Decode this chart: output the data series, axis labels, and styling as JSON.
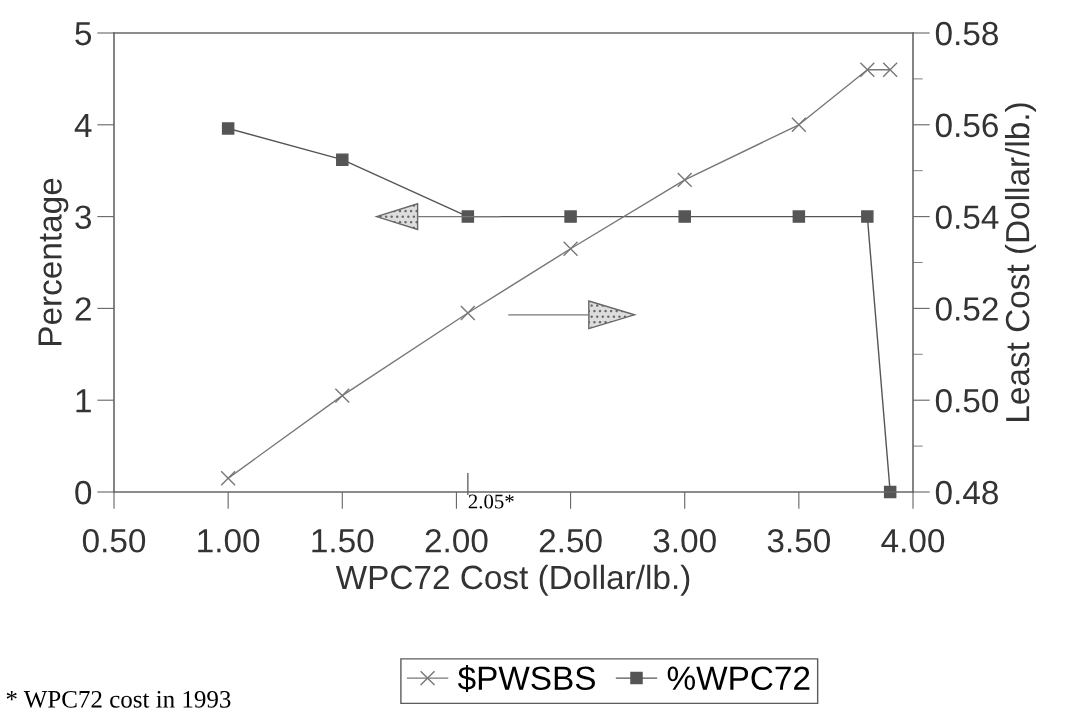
{
  "chart_data": {
    "type": "line",
    "xlabel": "WPC72 Cost (Dollar/lb.)",
    "ylabel": "Percentage",
    "y2label": "Least Cost (Dollar/lb.)",
    "x": [
      1.0,
      1.5,
      2.05,
      2.5,
      3.0,
      3.5,
      3.8,
      3.9
    ],
    "series": [
      {
        "name": "$PWSBS",
        "color": "#777777",
        "marker": "cross",
        "axis": "y2",
        "values": [
          0.483,
          0.501,
          0.519,
          0.533,
          0.548,
          0.56,
          0.572,
          0.572
        ]
      },
      {
        "name": "%WPC72",
        "color": "#555555",
        "marker": "square",
        "values": [
          3.96,
          3.62,
          3.0,
          3.0,
          3.0,
          3.0,
          3.0,
          0.0
        ]
      }
    ],
    "xlim": [
      0.5,
      4.0
    ],
    "xticks": [
      {
        "value": 0.5,
        "label": "0.50"
      },
      {
        "value": 1.0,
        "label": "1.00"
      },
      {
        "value": 1.5,
        "label": "1.50"
      },
      {
        "value": 2.0,
        "label": "2.00"
      },
      {
        "value": 2.5,
        "label": "2.50"
      },
      {
        "value": 3.0,
        "label": "3.00"
      },
      {
        "value": 3.5,
        "label": "3.50"
      },
      {
        "value": 4.0,
        "label": "4.00"
      }
    ],
    "ylim": [
      0,
      5
    ],
    "yticks": [
      0,
      1,
      2,
      3,
      4,
      5
    ],
    "y2lim": [
      0.48,
      0.58
    ],
    "y2ticks": [
      {
        "value": 0.48,
        "label": "0.48"
      },
      {
        "value": 0.5,
        "label": "0.50"
      },
      {
        "value": 0.52,
        "label": "0.52"
      },
      {
        "value": 0.54,
        "label": "0.54"
      },
      {
        "value": 0.56,
        "label": "0.56"
      },
      {
        "value": 0.58,
        "label": "0.58"
      }
    ],
    "annotations": [
      "* WPC72 cost in 1993"
    ],
    "ref_lines": [
      {
        "axis": "x",
        "value": 2.05,
        "label": "2.05*"
      }
    ],
    "grid": false,
    "legend": "bottom"
  }
}
